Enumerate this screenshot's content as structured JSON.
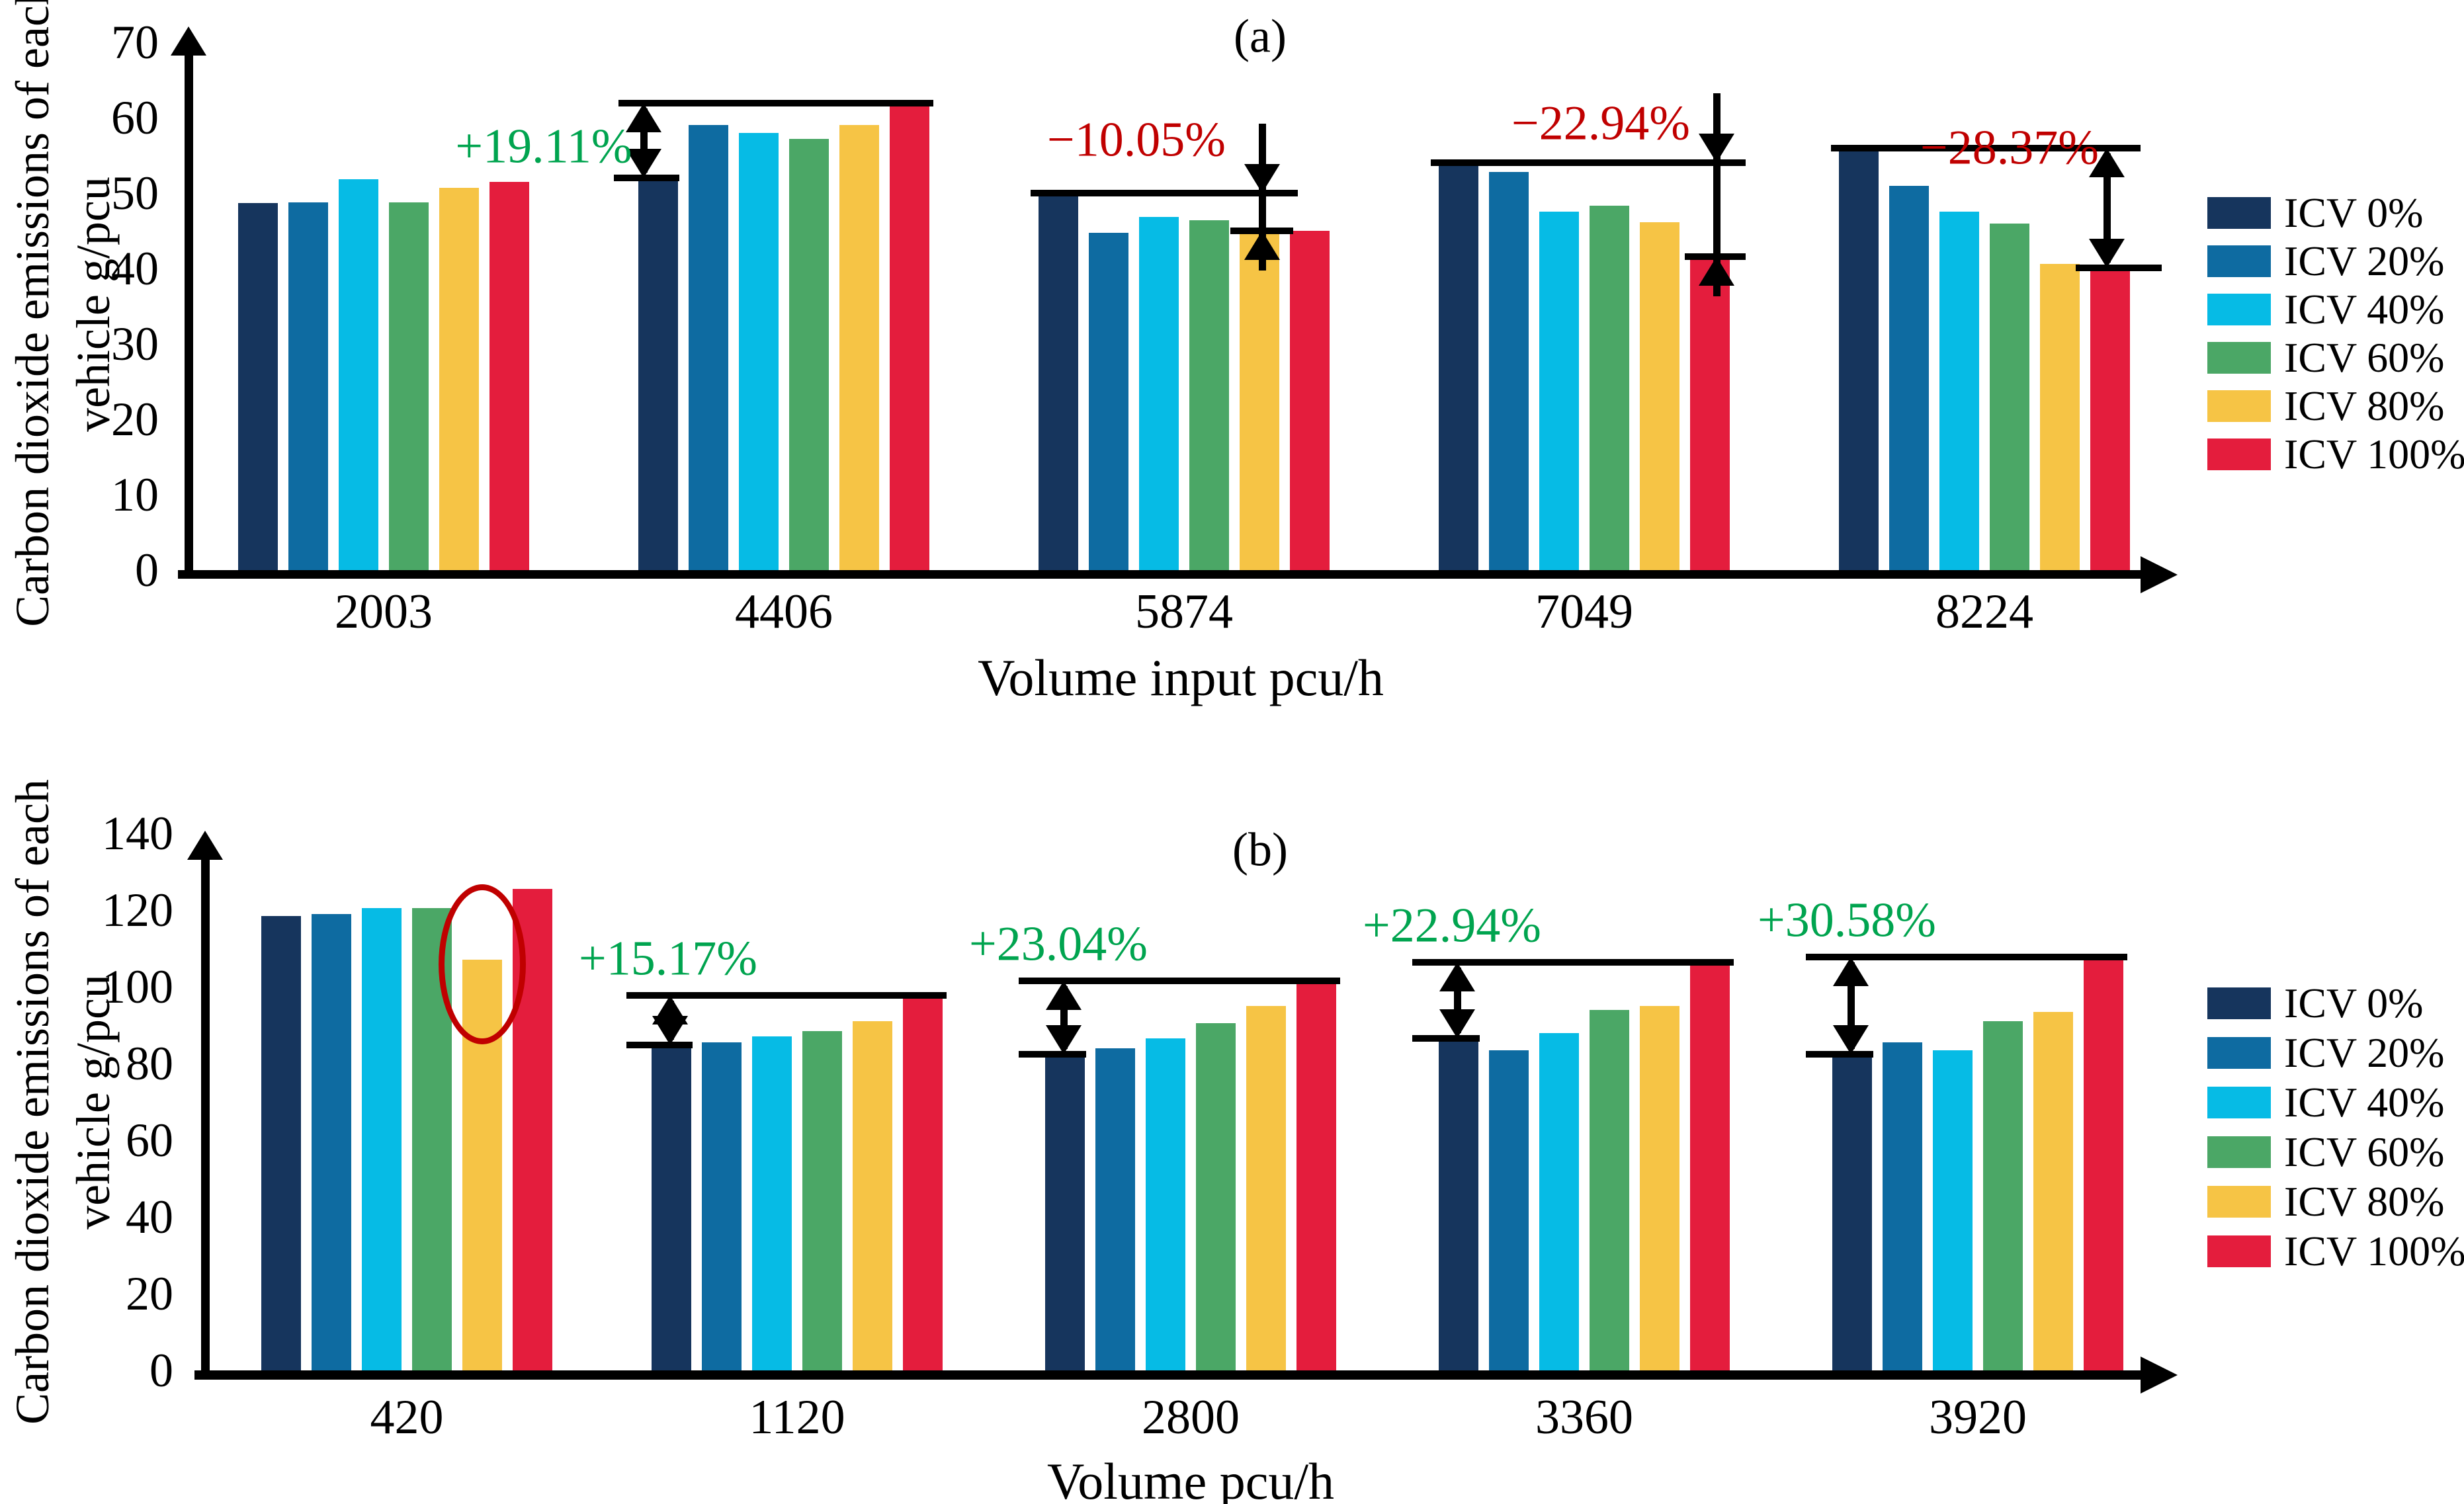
{
  "colors": {
    "icv0": "#16355d",
    "icv20": "#0e6ba1",
    "icv40": "#06bbe5",
    "icv60": "#4ba766",
    "icv80": "#f6c445",
    "icv100": "#e41d3d",
    "increase_text": "#00a44f",
    "decrease_text": "#c00000",
    "highlight_ellipse": "#c00000",
    "axis": "#000000"
  },
  "chart_data": [
    {
      "type": "bar",
      "title": "(a)",
      "ylabel_line1": "Carbon dioxide emissions of each",
      "ylabel_line2": "vehicle g/pcu",
      "xlabel": "Volume input pcu/h",
      "ylim": [
        0,
        70
      ],
      "yticks": [
        0,
        10,
        20,
        30,
        40,
        50,
        60,
        70
      ],
      "grid": false,
      "legend_position": "right",
      "categories": [
        "2003",
        "4406",
        "5874",
        "7049",
        "8224"
      ],
      "series": [
        {
          "name": "ICV 0%",
          "color_key": "icv0",
          "values": [
            48.7,
            52.0,
            50.0,
            54.0,
            56.0
          ]
        },
        {
          "name": "ICV 20%",
          "color_key": "icv20",
          "values": [
            48.8,
            59.0,
            44.7,
            52.8,
            51.0
          ]
        },
        {
          "name": "ICV 40%",
          "color_key": "icv40",
          "values": [
            51.8,
            58.0,
            46.8,
            47.5,
            47.5
          ]
        },
        {
          "name": "ICV 60%",
          "color_key": "icv60",
          "values": [
            48.8,
            57.2,
            46.4,
            48.3,
            46.0
          ]
        },
        {
          "name": "ICV 80%",
          "color_key": "icv80",
          "values": [
            50.7,
            59.0,
            44.9,
            46.1,
            40.6
          ]
        },
        {
          "name": "ICV 100%",
          "color_key": "icv100",
          "values": [
            51.5,
            61.9,
            45.0,
            41.6,
            40.1
          ]
        }
      ],
      "annotations": [
        {
          "group": "4406",
          "label": "+19.11%",
          "kind": "increase",
          "from": 52.0,
          "to": 61.9
        },
        {
          "group": "5874",
          "label": "−10.05%",
          "kind": "decrease",
          "from": 50.0,
          "to": 45.0
        },
        {
          "group": "7049",
          "label": "−22.94%",
          "kind": "decrease",
          "from": 54.0,
          "to": 41.6
        },
        {
          "group": "8224",
          "label": "−28.37%",
          "kind": "decrease",
          "from": 56.0,
          "to": 40.1
        }
      ]
    },
    {
      "type": "bar",
      "title": "(b)",
      "ylabel_line1": "Carbon dioxide emissions of each",
      "ylabel_line2": "vehicle g/pcu",
      "xlabel": "Volume pcu/h",
      "ylim": [
        0,
        140
      ],
      "yticks": [
        0,
        20,
        40,
        60,
        80,
        100,
        120,
        140
      ],
      "grid": false,
      "legend_position": "right",
      "categories": [
        "420",
        "1120",
        "2800",
        "3360",
        "3920"
      ],
      "series": [
        {
          "name": "ICV 0%",
          "color_key": "icv0",
          "values": [
            118.5,
            84.8,
            82.5,
            86.5,
            82.5
          ]
        },
        {
          "name": "ICV 20%",
          "color_key": "icv20",
          "values": [
            119.0,
            85.5,
            84.0,
            83.5,
            85.5
          ]
        },
        {
          "name": "ICV 40%",
          "color_key": "icv40",
          "values": [
            120.5,
            87.0,
            86.5,
            88.0,
            83.5
          ]
        },
        {
          "name": "ICV 60%",
          "color_key": "icv60",
          "values": [
            120.5,
            88.5,
            90.5,
            94.0,
            91.0
          ]
        },
        {
          "name": "ICV 80%",
          "color_key": "icv80",
          "values": [
            107.0,
            91.0,
            95.0,
            95.0,
            93.5
          ]
        },
        {
          "name": "ICV 100%",
          "color_key": "icv100",
          "values": [
            125.5,
            97.7,
            101.5,
            106.3,
            107.7
          ]
        }
      ],
      "annotations": [
        {
          "group": "1120",
          "label": "+15.17%",
          "kind": "increase",
          "from": 84.8,
          "to": 97.7
        },
        {
          "group": "2800",
          "label": "+23.04%",
          "kind": "increase",
          "from": 82.5,
          "to": 101.5
        },
        {
          "group": "3360",
          "label": "+22.94%",
          "kind": "increase",
          "from": 86.5,
          "to": 106.3
        },
        {
          "group": "3920",
          "label": "+30.58%",
          "kind": "increase",
          "from": 82.5,
          "to": 107.7
        }
      ],
      "highlight": {
        "group": "420",
        "series": "ICV 80%",
        "shape": "ellipse"
      }
    }
  ]
}
